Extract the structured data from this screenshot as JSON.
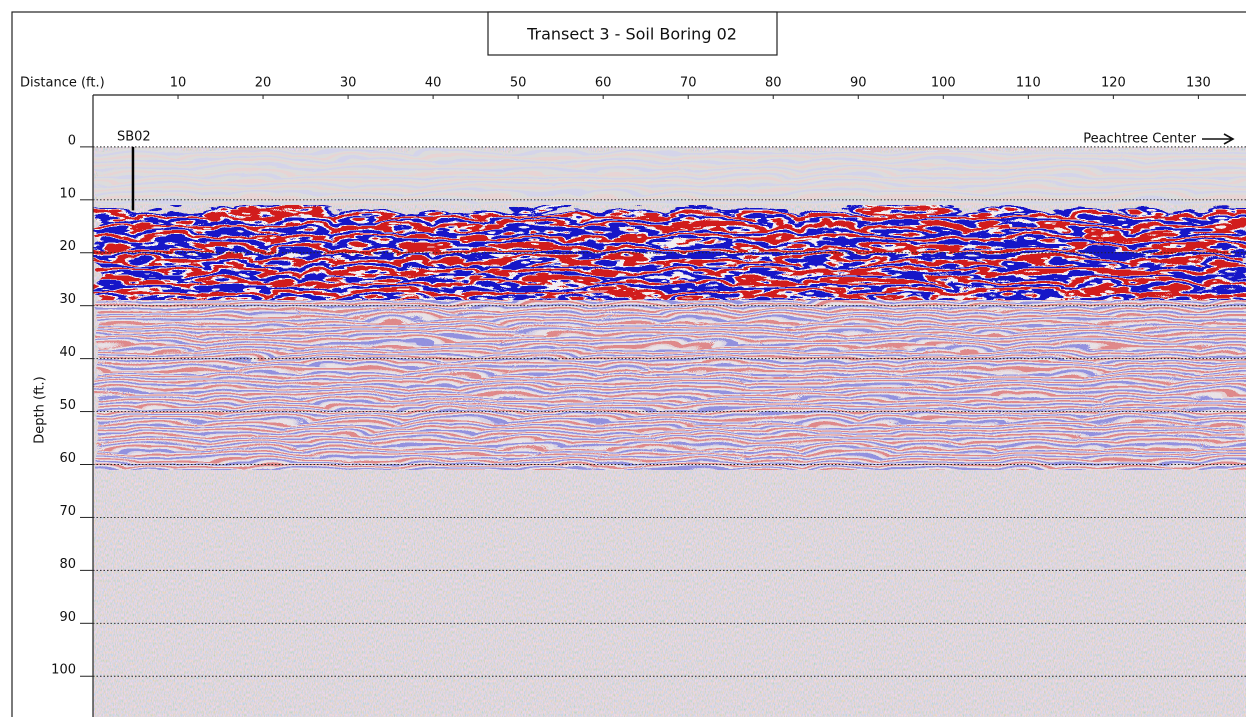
{
  "chart_data": {
    "type": "radargram",
    "title": "Transect 3 - Soil Boring 02",
    "xlabel": "Distance (ft.)",
    "ylabel": "Depth (ft.)",
    "xlim": [
      0,
      135.6
    ],
    "ylim": [
      107.7,
      -9.8
    ],
    "xticks": [
      10,
      20,
      30,
      40,
      50,
      60,
      70,
      80,
      90,
      100,
      110,
      120,
      130
    ],
    "yticks": [
      0,
      10,
      20,
      30,
      40,
      50,
      60,
      70,
      80,
      90,
      100
    ],
    "grid": true,
    "boring": {
      "label": "SB02",
      "x": 4.7,
      "depth": 12
    },
    "direction_label": "Peachtree Center"
  }
}
